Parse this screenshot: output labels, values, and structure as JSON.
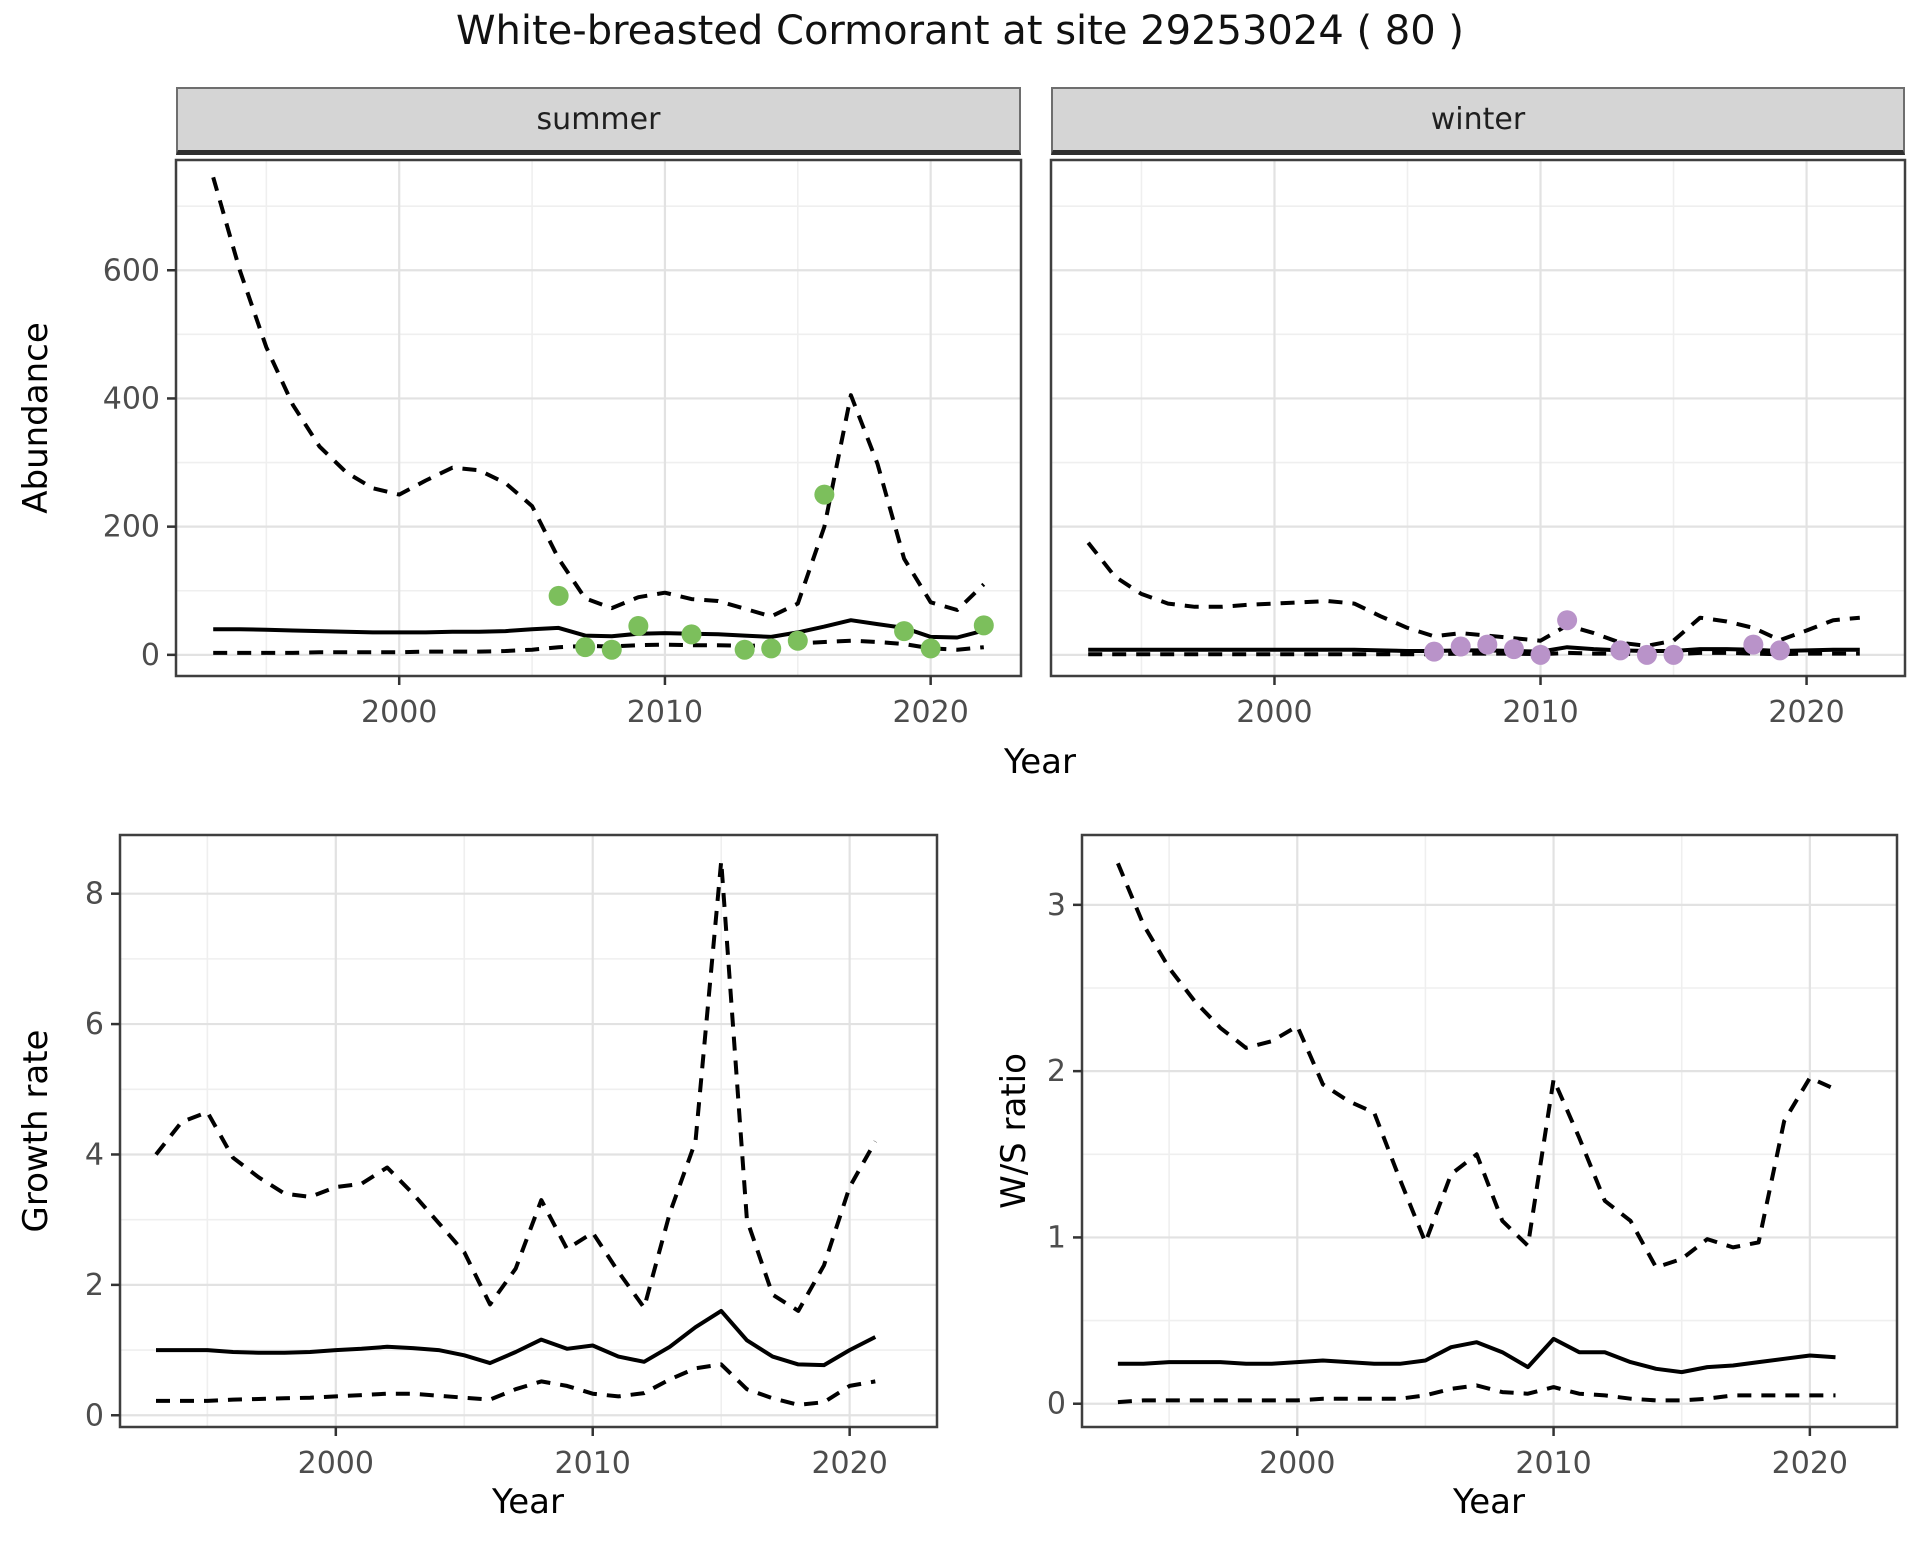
{
  "title": "White-breasted Cormorant at site 29253024 ( 80 )",
  "labels": {
    "y_abundance": "Abundance",
    "y_growth": "Growth rate",
    "y_ws": "W/S ratio",
    "year_top": "Year",
    "year_bottom_left": "Year",
    "year_bottom_right": "Year"
  },
  "colors": {
    "summer_point": "#7CBF5C",
    "winter_point": "#B993C9",
    "line": "#000000",
    "strip_bg": "#D5D5D5",
    "grid_major": "#E2E2E2",
    "grid_minor": "#EFEFEF",
    "panel_border": "#3F3F3F",
    "tick_mark": "#333333",
    "tick_label": "#4D4D4D"
  },
  "chart_data": [
    {
      "id": "abundance-summer",
      "type": "line",
      "facet_label": "summer",
      "xlabel": "Year",
      "ylabel": "Abundance",
      "xlim": [
        1991.6,
        2023.4
      ],
      "ylim": [
        -33,
        772
      ],
      "xticks": [
        2000,
        2010,
        2020
      ],
      "yticks": [
        0,
        200,
        400,
        600
      ],
      "xminor": [
        1995,
        2005,
        2015
      ],
      "yminor": [
        100,
        300,
        500,
        700
      ],
      "show_ytick_labels": true,
      "x": [
        1993,
        1994,
        1995,
        1996,
        1997,
        1998,
        1999,
        2000,
        2001,
        2002,
        2003,
        2004,
        2005,
        2006,
        2007,
        2008,
        2009,
        2010,
        2011,
        2012,
        2013,
        2014,
        2015,
        2016,
        2017,
        2018,
        2019,
        2020,
        2021,
        2022
      ],
      "series": [
        {
          "name": "upper CI",
          "style": "dashed",
          "values": [
            745,
            600,
            480,
            390,
            325,
            285,
            260,
            250,
            272,
            292,
            288,
            268,
            232,
            150,
            88,
            73,
            90,
            97,
            87,
            84,
            72,
            60,
            80,
            200,
            405,
            298,
            150,
            82,
            70,
            110
          ]
        },
        {
          "name": "median",
          "style": "solid",
          "values": [
            40,
            40,
            39,
            38,
            37,
            36,
            35,
            35,
            35,
            36,
            36,
            37,
            40,
            42,
            30,
            29,
            33,
            34,
            33,
            32,
            30,
            28,
            35,
            44,
            54,
            48,
            42,
            28,
            27,
            38
          ]
        },
        {
          "name": "lower CI",
          "style": "dashed",
          "values": [
            3,
            3,
            3,
            3,
            4,
            4,
            4,
            4,
            5,
            5,
            5,
            6,
            8,
            12,
            14,
            13,
            15,
            16,
            15,
            15,
            14,
            15,
            18,
            20,
            22,
            20,
            17,
            10,
            8,
            12
          ]
        }
      ],
      "observed_points": {
        "color_key": "summer_point",
        "data": [
          [
            2006,
            92
          ],
          [
            2007,
            12
          ],
          [
            2008,
            8
          ],
          [
            2009,
            45
          ],
          [
            2011,
            32
          ],
          [
            2013,
            8
          ],
          [
            2014,
            10
          ],
          [
            2015,
            22
          ],
          [
            2016,
            250
          ],
          [
            2019,
            37
          ],
          [
            2020,
            10
          ],
          [
            2022,
            46
          ]
        ]
      }
    },
    {
      "id": "abundance-winter",
      "type": "line",
      "facet_label": "winter",
      "xlabel": "Year",
      "ylabel": "Abundance",
      "xlim": [
        1991.6,
        2023.7
      ],
      "ylim": [
        -33,
        772
      ],
      "xticks": [
        2000,
        2010,
        2020
      ],
      "yticks": [
        0,
        200,
        400,
        600
      ],
      "xminor": [
        1995,
        2005,
        2015
      ],
      "yminor": [
        100,
        300,
        500,
        700
      ],
      "show_ytick_labels": false,
      "x": [
        1993,
        1994,
        1995,
        1996,
        1997,
        1998,
        1999,
        2000,
        2001,
        2002,
        2003,
        2004,
        2005,
        2006,
        2007,
        2008,
        2009,
        2010,
        2011,
        2012,
        2013,
        2014,
        2015,
        2016,
        2017,
        2018,
        2019,
        2020,
        2021,
        2022
      ],
      "series": [
        {
          "name": "upper CI",
          "style": "dashed",
          "values": [
            175,
            122,
            95,
            80,
            75,
            75,
            78,
            80,
            82,
            84,
            80,
            60,
            42,
            29,
            34,
            30,
            26,
            22,
            46,
            34,
            19,
            14,
            22,
            58,
            52,
            42,
            23,
            38,
            54,
            58
          ]
        },
        {
          "name": "median",
          "style": "solid",
          "values": [
            8,
            8,
            8,
            8,
            8,
            8,
            8,
            8,
            8,
            8,
            8,
            7,
            6,
            6,
            7,
            7,
            6,
            5,
            12,
            9,
            7,
            6,
            6,
            9,
            9,
            8,
            6,
            7,
            8,
            8
          ]
        },
        {
          "name": "lower CI",
          "style": "dashed",
          "values": [
            1,
            1,
            1,
            1,
            1,
            1,
            1,
            1,
            1,
            1,
            1,
            1,
            1,
            1,
            2,
            2,
            2,
            1,
            3,
            2,
            2,
            1,
            1,
            3,
            3,
            2,
            1,
            2,
            2,
            2
          ]
        }
      ],
      "observed_points": {
        "color_key": "winter_point",
        "data": [
          [
            2006,
            5
          ],
          [
            2007,
            13
          ],
          [
            2008,
            16
          ],
          [
            2009,
            9
          ],
          [
            2010,
            0
          ],
          [
            2011,
            54
          ],
          [
            2013,
            7
          ],
          [
            2014,
            0
          ],
          [
            2015,
            0
          ],
          [
            2018,
            16
          ],
          [
            2019,
            7
          ]
        ]
      }
    },
    {
      "id": "growth-rate",
      "type": "line",
      "facet_label": "",
      "xlabel": "Year",
      "ylabel": "Growth rate",
      "xlim": [
        1991.6,
        2023.4
      ],
      "ylim": [
        -0.18,
        8.9
      ],
      "xticks": [
        2000,
        2010,
        2020
      ],
      "yticks": [
        0,
        2,
        4,
        6,
        8
      ],
      "xminor": [
        1995,
        2005,
        2015
      ],
      "yminor": [
        1,
        3,
        5,
        7
      ],
      "show_ytick_labels": true,
      "x": [
        1993,
        1994,
        1995,
        1996,
        1997,
        1998,
        1999,
        2000,
        2001,
        2002,
        2003,
        2004,
        2005,
        2006,
        2007,
        2008,
        2009,
        2010,
        2011,
        2012,
        2013,
        2014,
        2015,
        2016,
        2017,
        2018,
        2019,
        2020,
        2021
      ],
      "series": [
        {
          "name": "upper CI",
          "style": "dashed",
          "values": [
            4.0,
            4.5,
            4.65,
            3.95,
            3.65,
            3.4,
            3.35,
            3.5,
            3.55,
            3.8,
            3.4,
            2.95,
            2.5,
            1.7,
            2.25,
            3.3,
            2.55,
            2.8,
            2.2,
            1.65,
            3.1,
            4.2,
            8.5,
            3.0,
            1.85,
            1.6,
            2.3,
            3.5,
            4.2
          ]
        },
        {
          "name": "median",
          "style": "solid",
          "values": [
            1.0,
            1.0,
            1.0,
            0.97,
            0.96,
            0.96,
            0.97,
            1.0,
            1.02,
            1.05,
            1.03,
            1.0,
            0.92,
            0.8,
            0.97,
            1.16,
            1.02,
            1.07,
            0.9,
            0.82,
            1.05,
            1.35,
            1.6,
            1.15,
            0.9,
            0.78,
            0.77,
            1.0,
            1.2
          ]
        },
        {
          "name": "lower CI",
          "style": "dashed",
          "values": [
            0.22,
            0.22,
            0.22,
            0.24,
            0.25,
            0.26,
            0.27,
            0.29,
            0.31,
            0.33,
            0.33,
            0.3,
            0.27,
            0.24,
            0.4,
            0.52,
            0.45,
            0.33,
            0.29,
            0.34,
            0.55,
            0.72,
            0.78,
            0.4,
            0.26,
            0.16,
            0.2,
            0.45,
            0.52
          ]
        }
      ]
    },
    {
      "id": "ws-ratio",
      "type": "line",
      "facet_label": "",
      "xlabel": "Year",
      "ylabel": "W/S ratio",
      "xlim": [
        1991.6,
        2023.4
      ],
      "ylim": [
        -0.14,
        3.42
      ],
      "xticks": [
        2000,
        2010,
        2020
      ],
      "yticks": [
        0,
        1,
        2,
        3
      ],
      "xminor": [
        1995,
        2005,
        2015
      ],
      "yminor": [
        0.5,
        1.5,
        2.5
      ],
      "show_ytick_labels": true,
      "x": [
        1993,
        1994,
        1995,
        1996,
        1997,
        1998,
        1999,
        2000,
        2001,
        2002,
        2003,
        2004,
        2005,
        2006,
        2007,
        2008,
        2009,
        2010,
        2011,
        2012,
        2013,
        2014,
        2015,
        2016,
        2017,
        2018,
        2019,
        2020,
        2021
      ],
      "series": [
        {
          "name": "upper CI",
          "style": "dashed",
          "values": [
            3.25,
            2.88,
            2.62,
            2.42,
            2.26,
            2.14,
            2.18,
            2.27,
            1.92,
            1.82,
            1.75,
            1.35,
            0.97,
            1.38,
            1.5,
            1.1,
            0.95,
            1.95,
            1.6,
            1.22,
            1.1,
            0.82,
            0.87,
            0.99,
            0.94,
            0.97,
            1.7,
            1.96,
            1.89
          ]
        },
        {
          "name": "median",
          "style": "solid",
          "values": [
            0.24,
            0.24,
            0.25,
            0.25,
            0.25,
            0.24,
            0.24,
            0.25,
            0.26,
            0.25,
            0.24,
            0.24,
            0.26,
            0.34,
            0.37,
            0.31,
            0.22,
            0.39,
            0.31,
            0.31,
            0.25,
            0.21,
            0.19,
            0.22,
            0.23,
            0.25,
            0.27,
            0.29,
            0.28
          ]
        },
        {
          "name": "lower CI",
          "style": "dashed",
          "values": [
            0.01,
            0.02,
            0.02,
            0.02,
            0.02,
            0.02,
            0.02,
            0.02,
            0.03,
            0.03,
            0.03,
            0.03,
            0.05,
            0.09,
            0.11,
            0.07,
            0.06,
            0.1,
            0.06,
            0.05,
            0.03,
            0.02,
            0.02,
            0.03,
            0.05,
            0.05,
            0.05,
            0.05,
            0.05
          ]
        }
      ]
    }
  ]
}
